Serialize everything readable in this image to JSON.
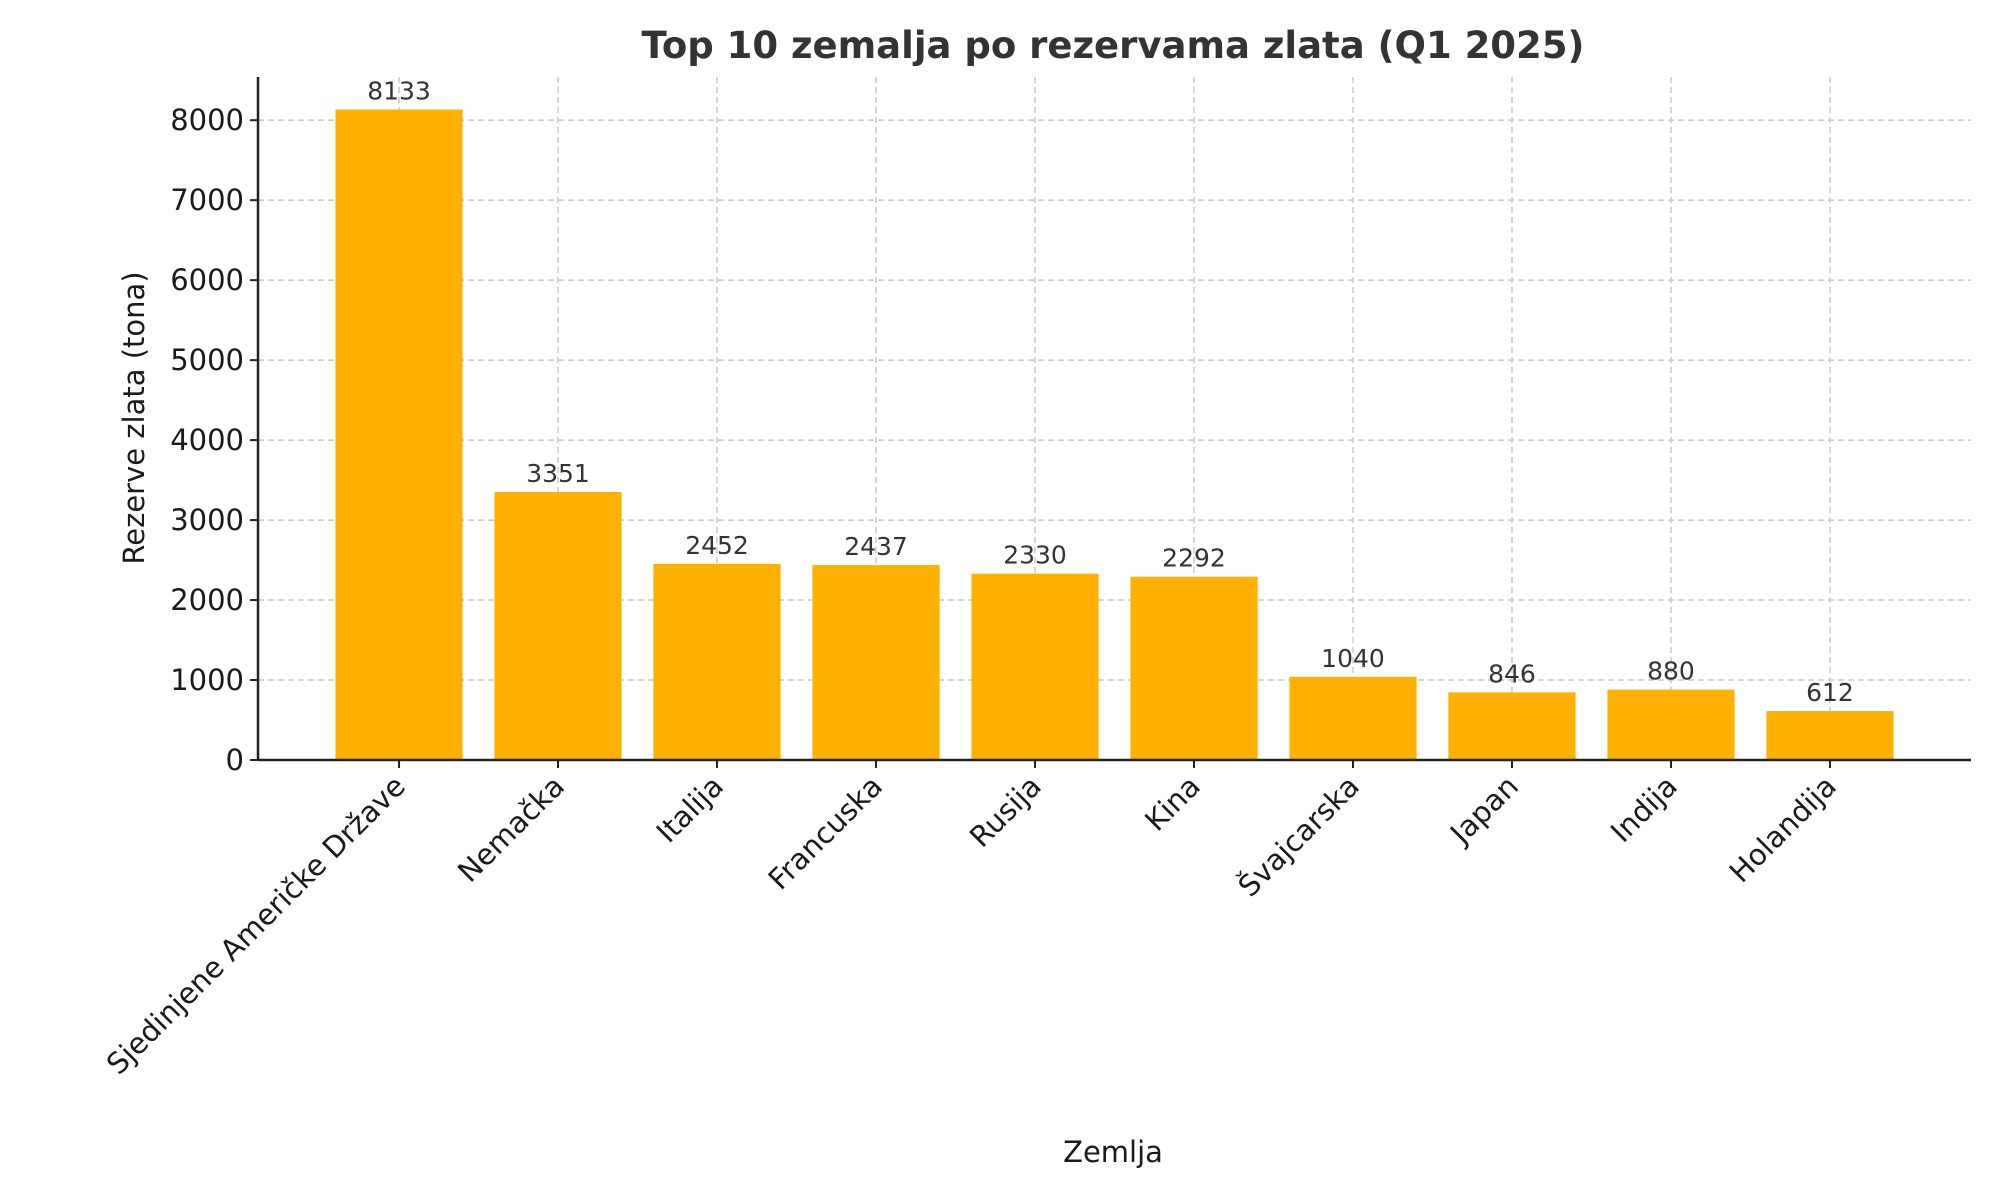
{
  "chart_data": {
    "type": "bar",
    "title": "Top 10 zemalja po rezervama zlata (Q1 2025)",
    "xlabel": "Zemlja",
    "ylabel": "Rezerve zlata (tona)",
    "categories": [
      "Sjedinjene Američke Države",
      "Nemačka",
      "Italija",
      "Francuska",
      "Rusija",
      "Kina",
      "Švajcarska",
      "Japan",
      "Indija",
      "Holandija"
    ],
    "values": [
      8133,
      3351,
      2452,
      2437,
      2330,
      2292,
      1040,
      846,
      880,
      612
    ],
    "data_labels": [
      "8133",
      "3351",
      "2452",
      "2437",
      "2330",
      "2292",
      "1040",
      "846",
      "880",
      "612"
    ],
    "ylim": [
      0,
      8540
    ],
    "yticks": [
      0,
      1000,
      2000,
      3000,
      4000,
      5000,
      6000,
      7000,
      8000
    ],
    "ytick_labels": [
      "0",
      "1000",
      "2000",
      "3000",
      "4000",
      "5000",
      "6000",
      "7000",
      "8000"
    ],
    "grid": true,
    "bar_color": "#FFB000",
    "xtick_rotation_deg": 45
  }
}
